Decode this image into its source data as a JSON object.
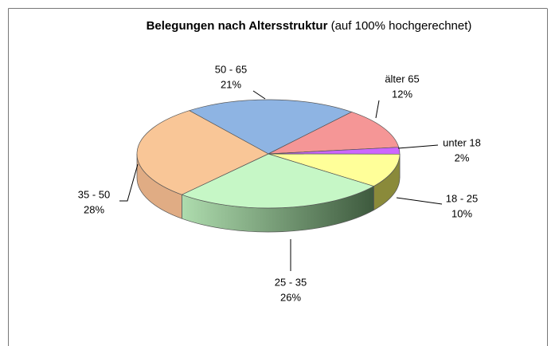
{
  "chart_data": {
    "type": "pie",
    "title": "Belegungen nach Altersstruktur",
    "subtitle": "(auf 100% hochgerechnet)",
    "categories": [
      "50 - 65",
      "älter 65",
      "unter 18",
      "18 - 25",
      "25 - 35",
      "35 - 50"
    ],
    "values": [
      21,
      12,
      2,
      10,
      26,
      28
    ],
    "value_labels": [
      "21%",
      "12%",
      "2%",
      "10%",
      "26%",
      "28%"
    ],
    "colors": [
      "#8eb4e3",
      "#f59696",
      "#cc66ff",
      "#ffff99",
      "#c6f7c6",
      "#f9c697"
    ]
  }
}
